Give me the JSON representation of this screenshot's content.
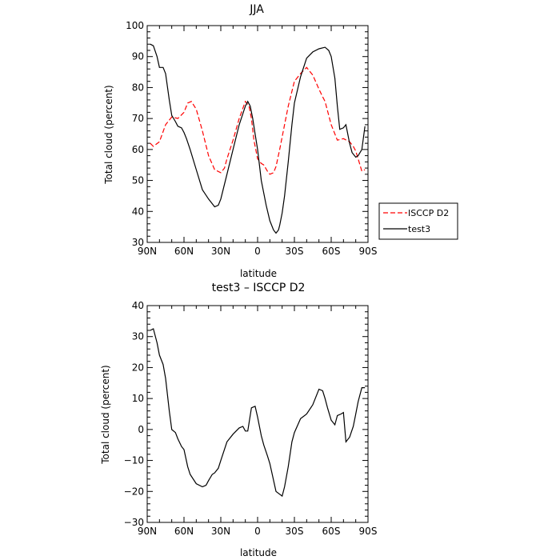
{
  "chart_data": [
    {
      "type": "line",
      "title": "JJA",
      "xlabel": "latitude",
      "ylabel": "Total cloud (percent)",
      "xlim": [
        90,
        -90
      ],
      "ylim": [
        30,
        100
      ],
      "xticks": [
        90,
        60,
        30,
        0,
        -30,
        -60,
        -90
      ],
      "xtick_labels": [
        "90N",
        "60N",
        "30N",
        "0",
        "30S",
        "60S",
        "90S"
      ],
      "yticks": [
        30,
        40,
        50,
        60,
        70,
        80,
        90,
        100
      ],
      "ytick_labels": [
        "30",
        "40",
        "50",
        "60",
        "70",
        "80",
        "90",
        "100"
      ],
      "legend_position": "right",
      "grid": false,
      "series": [
        {
          "name": "ISCCP D2",
          "color": "#ff0000",
          "dash": "dashed",
          "x": [
            87.5,
            85,
            80,
            75,
            70,
            65,
            60,
            57,
            54,
            50,
            45,
            40,
            35,
            30,
            27,
            25,
            20,
            15,
            10,
            7,
            5,
            3,
            0,
            -3,
            -5,
            -8,
            -10,
            -13,
            -15,
            -18,
            -22,
            -25,
            -30,
            -35,
            -40,
            -45,
            -50,
            -53,
            -55,
            -60,
            -65,
            -70,
            -75,
            -78,
            -80,
            -82,
            -85,
            -87.5
          ],
          "y": [
            62,
            61,
            62.5,
            68,
            70.5,
            70,
            72,
            75,
            75.5,
            73,
            66,
            58,
            53.5,
            52.5,
            54,
            57,
            63,
            70,
            75.5,
            74,
            70,
            63,
            57,
            55.5,
            55,
            53,
            52,
            52.5,
            54.5,
            60,
            68,
            74,
            82,
            84.5,
            86.5,
            84,
            79.5,
            77,
            75.5,
            68,
            63,
            63.5,
            62.5,
            61,
            59.5,
            57,
            53,
            53.5
          ]
        },
        {
          "name": "test3",
          "color": "#000000",
          "dash": "solid",
          "x": [
            87.5,
            85,
            82,
            80,
            77,
            75,
            72,
            70,
            67,
            65,
            62,
            60,
            58,
            55,
            50,
            45,
            40,
            37,
            35,
            32,
            30,
            25,
            20,
            15,
            10,
            8,
            6,
            4,
            2,
            0,
            -3,
            -7,
            -10,
            -13,
            -15,
            -17,
            -18,
            -20,
            -22,
            -25,
            -28,
            -30,
            -35,
            -40,
            -45,
            -50,
            -55,
            -58,
            -60,
            -63,
            -65,
            -67,
            -70,
            -72,
            -75,
            -77,
            -80,
            -82,
            -85,
            -87.5
          ],
          "y": [
            94,
            93.5,
            90,
            86.5,
            86.5,
            84.5,
            76,
            71,
            69,
            67.5,
            67,
            65.5,
            63.5,
            60,
            53.5,
            47,
            44,
            42.5,
            41.5,
            42,
            44,
            52,
            60,
            68,
            74,
            75.5,
            74,
            70,
            65,
            60,
            50,
            42,
            37,
            34,
            33,
            34,
            35.5,
            39.5,
            45,
            56,
            68,
            75,
            83.5,
            89.5,
            91.5,
            92.5,
            93,
            92,
            90,
            83,
            74,
            66.5,
            67,
            68,
            62,
            59,
            57.5,
            58,
            60,
            67.5
          ]
        }
      ]
    },
    {
      "type": "line",
      "title": "test3 – ISCCP D2",
      "xlabel": "latitude",
      "ylabel": "Total cloud (percent)",
      "xlim": [
        90,
        -90
      ],
      "ylim": [
        -30,
        40
      ],
      "xticks": [
        90,
        60,
        30,
        0,
        -30,
        -60,
        -90
      ],
      "xtick_labels": [
        "90N",
        "60N",
        "30N",
        "0",
        "30S",
        "60S",
        "90S"
      ],
      "yticks": [
        -30,
        -20,
        -10,
        0,
        10,
        20,
        30,
        40
      ],
      "ytick_labels": [
        "−30",
        "−20",
        "−10",
        "0",
        "10",
        "20",
        "30",
        "40"
      ],
      "grid": false,
      "series": [
        {
          "color": "#000000",
          "dash": "solid",
          "x": [
            87.5,
            85,
            82,
            80,
            77,
            75,
            72,
            70,
            67,
            65,
            62,
            60,
            57,
            55,
            50,
            45,
            42,
            40,
            37,
            35,
            32,
            30,
            25,
            20,
            15,
            12,
            10,
            8,
            5,
            2,
            0,
            -3,
            -5,
            -8,
            -10,
            -15,
            -20,
            -22,
            -25,
            -28,
            -30,
            -35,
            -40,
            -45,
            -48,
            -50,
            -53,
            -55,
            -57,
            -60,
            -63,
            -65,
            -68,
            -70,
            -72,
            -75,
            -78,
            -80,
            -82,
            -85,
            -87.5
          ],
          "y": [
            32,
            32.5,
            28,
            24,
            21,
            16.5,
            6,
            0,
            -1,
            -3,
            -5.5,
            -6.5,
            -12,
            -14.5,
            -17.5,
            -18.5,
            -18,
            -16.5,
            -14.5,
            -14,
            -12.5,
            -10,
            -4,
            -1.5,
            0.5,
            1,
            -0.5,
            -0.5,
            7,
            7.5,
            4,
            -2,
            -5,
            -8.5,
            -11,
            -20,
            -21.5,
            -18.5,
            -12,
            -4,
            -1,
            3.5,
            5,
            8,
            11,
            13,
            12.5,
            10,
            7,
            3,
            1.5,
            4.5,
            5,
            5.5,
            -4,
            -2.5,
            1,
            5,
            9,
            13.5,
            13.5
          ]
        }
      ]
    }
  ]
}
